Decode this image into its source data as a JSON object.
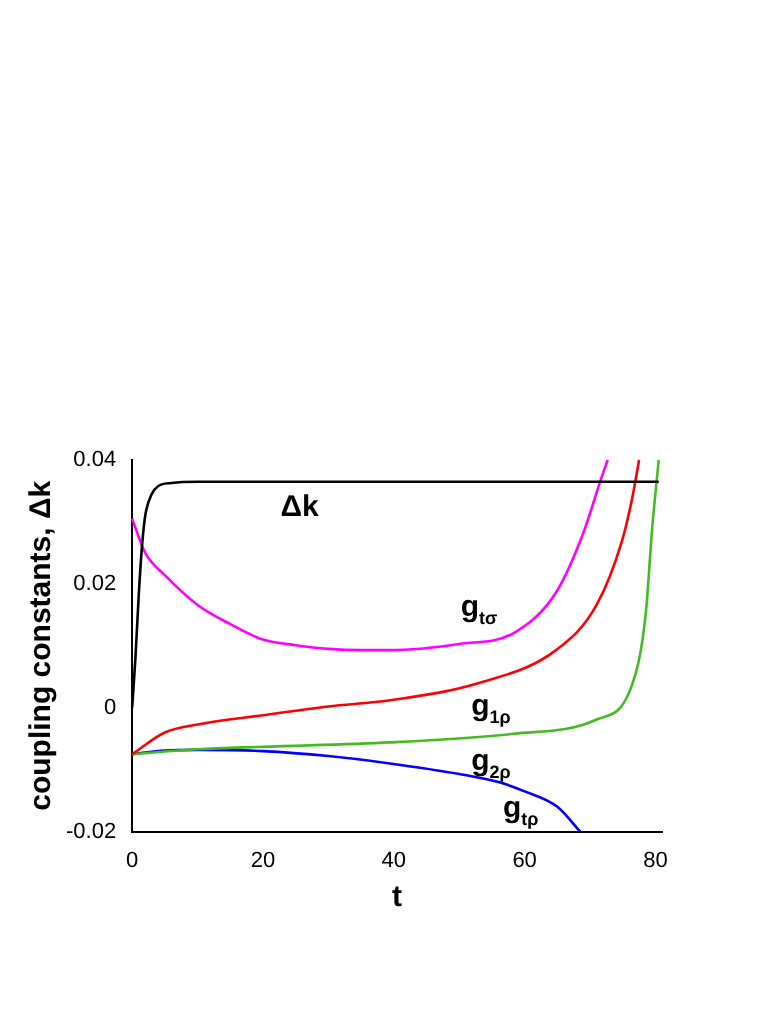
{
  "chart_data": {
    "type": "line",
    "xlabel": "t",
    "ylabel": "coupling constants, Δk",
    "xlim": [
      0,
      81
    ],
    "xticks": [
      0,
      20,
      40,
      60,
      80
    ],
    "ylim": [
      -0.02,
      0.04
    ],
    "yticks": [
      -0.02,
      0,
      0.02,
      0.04
    ],
    "grid": false,
    "legend": false,
    "marker": "none",
    "line_style": "solid",
    "series": [
      {
        "name": "Δk",
        "color": "#000000",
        "x": [
          0,
          0.5,
          1,
          1.5,
          2,
          3,
          4,
          6,
          10,
          80.5
        ],
        "values": [
          0,
          0.008,
          0.018,
          0.026,
          0.031,
          0.0345,
          0.0358,
          0.0363,
          0.0365,
          0.0365
        ]
      },
      {
        "name": "g$_{tσ}$",
        "color": "#ff00ff",
        "x": [
          0,
          2,
          5,
          10,
          15,
          20,
          25,
          30,
          35,
          39.4,
          50,
          58.4,
          64.8,
          68.9,
          71.7,
          72.7
        ],
        "values": [
          0.0305,
          0.025,
          0.0214,
          0.0166,
          0.0135,
          0.011,
          0.0101,
          0.0095,
          0.0093,
          0.0093,
          0.0103,
          0.0121,
          0.0186,
          0.028,
          0.037,
          0.04
        ]
      },
      {
        "name": "g$_{1ρ}$",
        "color": "#ff0000",
        "x": [
          0,
          5,
          10,
          20,
          30,
          39.4,
          53,
          64.8,
          71,
          74.9,
          76.4,
          77.5
        ],
        "values": [
          -0.0075,
          -0.004,
          -0.0027,
          -0.0012,
          0.0002,
          0.0012,
          0.004,
          0.0093,
          0.0166,
          0.027,
          0.0336,
          0.04
        ]
      },
      {
        "name": "g$_{2ρ}$",
        "color": "#44bb22",
        "x": [
          0,
          10,
          20,
          39.4,
          58.4,
          71,
          76.4,
          78.5,
          79.5,
          80.5
        ],
        "values": [
          -0.0075,
          -0.0067,
          -0.0063,
          -0.0056,
          -0.0042,
          -0.0019,
          0.0036,
          0.015,
          0.029,
          0.04
        ]
      },
      {
        "name": "g$_{tρ}$",
        "color": "#0000ff",
        "x": [
          0,
          5,
          10,
          20,
          30,
          39.4,
          50,
          56,
          60,
          65,
          68.5
        ],
        "values": [
          -0.0075,
          -0.0069,
          -0.0068,
          -0.007,
          -0.0078,
          -0.009,
          -0.0107,
          -0.012,
          -0.0135,
          -0.016,
          -0.02
        ]
      }
    ]
  }
}
